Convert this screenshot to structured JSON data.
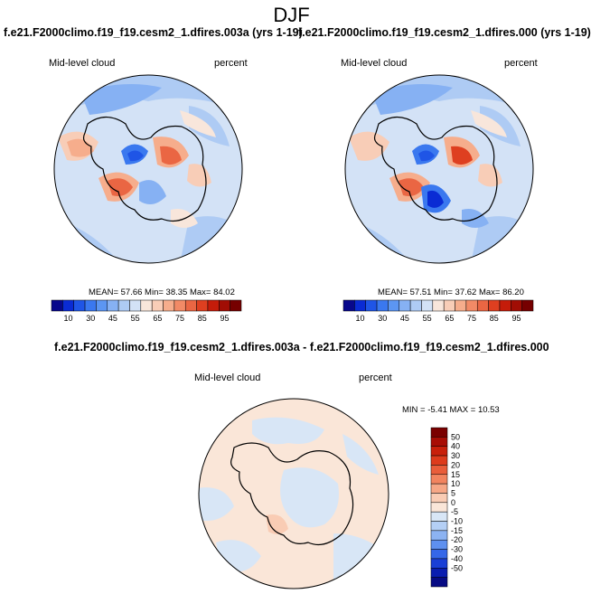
{
  "figure": {
    "title": "DJF"
  },
  "panels": [
    {
      "title": "f.e21.F2000climo.f19_f19.cesm2_1.dfires.003a (yrs 1-19)",
      "left_label": "Mid-level cloud",
      "right_label": "percent",
      "stats": "MEAN=  57.66  Min=  38.35  Max=  84.02"
    },
    {
      "title": "f.e21.F2000climo.f19_f19.cesm2_1.dfires.000 (yrs 1-19)",
      "left_label": "Mid-level cloud",
      "right_label": "percent",
      "stats": "MEAN=  57.51  Min=  37.62  Max=  86.20"
    },
    {
      "title": "f.e21.F2000climo.f19_f19.cesm2_1.dfires.003a - f.e21.F2000climo.f19_f19.cesm2_1.dfires.000",
      "left_label": "Mid-level cloud",
      "right_label": "percent",
      "stats": "MIN =  -5.41 MAX =  10.53"
    }
  ],
  "colorbar_abs": {
    "labels": [
      "10",
      "30",
      "45",
      "55",
      "65",
      "75",
      "85",
      "95"
    ],
    "colors": [
      "#08088c",
      "#0a2bd4",
      "#1f55e6",
      "#3a78ef",
      "#5c96f2",
      "#86b1f3",
      "#aecbf4",
      "#d3e2f6",
      "#f8e6db",
      "#f8cdb7",
      "#f6ad8c",
      "#f28a66",
      "#ea6643",
      "#de3f20",
      "#c51c0a",
      "#a10d04",
      "#760000"
    ]
  },
  "colorbar_diff": {
    "labels": [
      "50",
      "40",
      "30",
      "20",
      "15",
      "10",
      "5",
      "0",
      "-5",
      "-10",
      "-15",
      "-20",
      "-30",
      "-40",
      "-50"
    ],
    "colors": [
      "#7a0000",
      "#a80d05",
      "#c8200b",
      "#dd3b1c",
      "#e95d3a",
      "#f2845f",
      "#f6a786",
      "#f9ccb4",
      "#fae6d8",
      "#d8e6f6",
      "#b4cff5",
      "#8cb3f2",
      "#5e90ef",
      "#3567e8",
      "#1a3fd6",
      "#0a1db0",
      "#070b84"
    ]
  }
}
